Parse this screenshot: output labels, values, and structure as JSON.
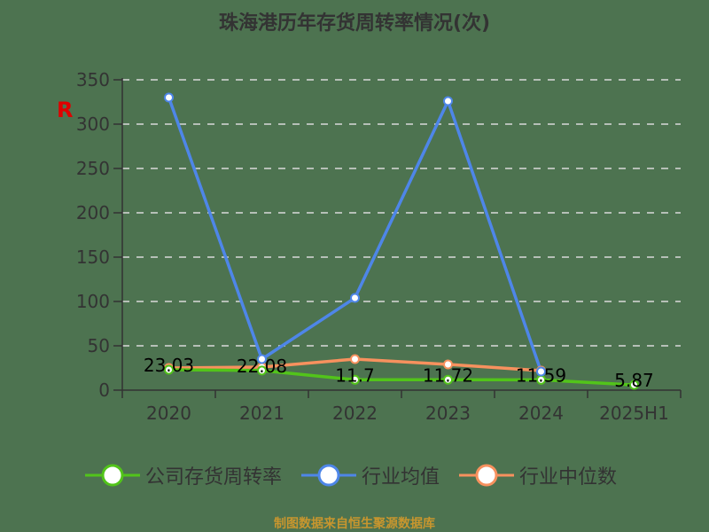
{
  "title": "珠海港历年存货周转率情况(次)",
  "source": "制图数据来自恒生聚源数据库",
  "watermark": "R",
  "legend": [
    {
      "label": "公司存货周转率",
      "color": "#52c41a"
    },
    {
      "label": "行业均值",
      "color": "#4e86e8"
    },
    {
      "label": "行业中位数",
      "color": "#f7915e"
    }
  ],
  "y_ticks": [
    "0",
    "50",
    "100",
    "150",
    "200",
    "250",
    "300",
    "350"
  ],
  "categories": [
    "2020",
    "2021",
    "2022",
    "2023",
    "2024",
    "2025H1"
  ],
  "data_labels": [
    "23.03",
    "22.08",
    "11.7",
    "11.72",
    "11.59",
    "5.87"
  ],
  "chart_data": {
    "type": "line",
    "title": "珠海港历年存货周转率情况(次)",
    "xlabel": "",
    "ylabel": "",
    "ylim": [
      0,
      350
    ],
    "grid": true,
    "legend_position": "bottom",
    "categories": [
      "2020",
      "2021",
      "2022",
      "2023",
      "2024",
      "2025H1"
    ],
    "series": [
      {
        "name": "公司存货周转率",
        "color": "#52c41a",
        "values": [
          23.03,
          22.08,
          11.7,
          11.72,
          11.59,
          5.87
        ]
      },
      {
        "name": "行业均值",
        "color": "#4e86e8",
        "values": [
          330,
          35,
          104,
          326,
          21,
          null
        ]
      },
      {
        "name": "行业中位数",
        "color": "#f7915e",
        "values": [
          25,
          26,
          35,
          29,
          22,
          null
        ]
      }
    ]
  }
}
